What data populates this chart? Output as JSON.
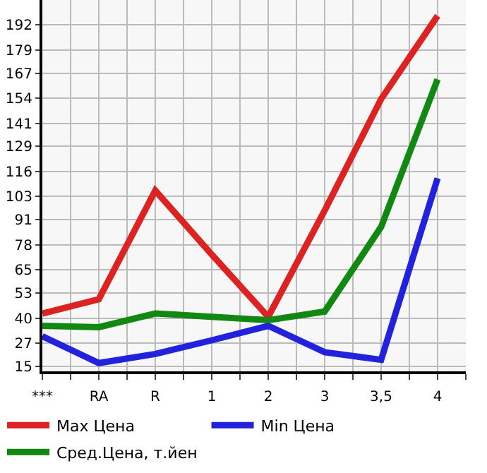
{
  "chart_data": {
    "type": "line",
    "categories": [
      "***",
      "RA",
      "R",
      "1",
      "2",
      "3",
      "3,5",
      "4"
    ],
    "series": [
      {
        "name": "Max Цена",
        "color": "#dd2222",
        "values": [
          42.4,
          49.8,
          106.1,
          73,
          40.7,
          95.8,
          153.6,
          196.7
        ]
      },
      {
        "name": "Min Цена",
        "color": "#2222dd",
        "values": [
          30.6,
          16.7,
          21.4,
          28.5,
          36,
          22.3,
          18.4,
          112.5
        ]
      },
      {
        "name": "Сред.Цена, т.йен",
        "color": "#118811",
        "values": [
          36,
          35.3,
          42.4,
          40.7,
          38.9,
          43.4,
          87.3,
          163.8
        ]
      }
    ],
    "ylim": [
      12.4,
      204.9
    ],
    "yticks": [
      15,
      27,
      40,
      53,
      65,
      78,
      91,
      103,
      116,
      129,
      141,
      154,
      167,
      179,
      192
    ],
    "grid": true,
    "legend": "bottom",
    "marker": "none",
    "line_style": "solid"
  }
}
